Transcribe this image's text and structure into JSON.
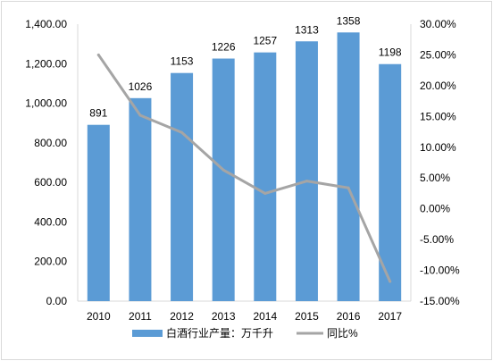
{
  "chart_data": {
    "type": "bar+line",
    "categories": [
      "2010",
      "2011",
      "2012",
      "2013",
      "2014",
      "2015",
      "2016",
      "2017"
    ],
    "series": [
      {
        "name": "白酒行业产量：万千升",
        "type": "bar",
        "axis": "left",
        "color": "#5b9bd5",
        "values": [
          891,
          1026,
          1153,
          1226,
          1257,
          1313,
          1358,
          1198
        ],
        "value_labels": [
          "891",
          "1026",
          "1153",
          "1226",
          "1257",
          "1313",
          "1358",
          "1198"
        ]
      },
      {
        "name": "同比%",
        "type": "line",
        "axis": "right",
        "color": "#a5a5a5",
        "values": [
          25.0,
          15.2,
          12.4,
          6.3,
          2.5,
          4.5,
          3.4,
          -11.8
        ]
      }
    ],
    "y_left": {
      "range": [
        0,
        1400
      ],
      "ticks": [
        0,
        200,
        400,
        600,
        800,
        1000,
        1200,
        1400
      ],
      "tick_labels": [
        "0.00",
        "200.00",
        "400.00",
        "600.00",
        "800.00",
        "1,000.00",
        "1,200.00",
        "1,400.00"
      ]
    },
    "y_right": {
      "range": [
        -15,
        30
      ],
      "ticks": [
        -15,
        -10,
        -5,
        0,
        5,
        10,
        15,
        20,
        25,
        30
      ],
      "tick_labels": [
        "-15.00%",
        "-10.00%",
        "-5.00%",
        "0.00%",
        "5.00%",
        "10.00%",
        "15.00%",
        "20.00%",
        "25.00%",
        "30.00%"
      ]
    },
    "grid": false,
    "legend": "bottom"
  }
}
